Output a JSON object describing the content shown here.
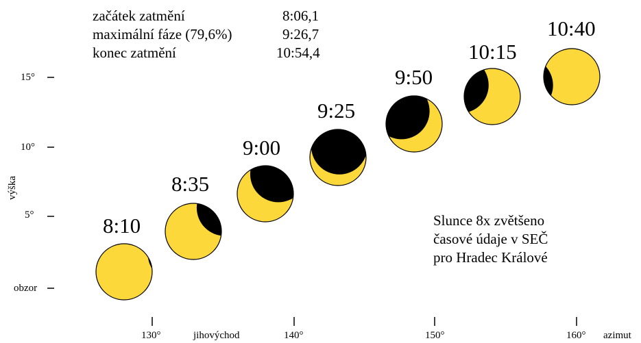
{
  "info_table": [
    {
      "label": "začátek zatmění",
      "value": "8:06,1"
    },
    {
      "label": "maximální fáze (79,6%)",
      "value": "9:26,7"
    },
    {
      "label": "konec zatmění",
      "value": "10:54,4"
    }
  ],
  "notes": [
    "Slunce 8x zvětšeno",
    "časové údaje v SEČ",
    "pro Hradec Králové"
  ],
  "axes": {
    "y_label": "výška",
    "y_ticks": [
      "obzor",
      "5°",
      "10°",
      "15°"
    ],
    "x_ticks": [
      "130°",
      "140°",
      "150°",
      "160°"
    ],
    "x_direction_label": "jihovýchod",
    "x_label": "azimut"
  },
  "frames": [
    {
      "time": "8:10",
      "eclipse": 0.03
    },
    {
      "time": "8:35",
      "eclipse": 0.3
    },
    {
      "time": "9:00",
      "eclipse": 0.58
    },
    {
      "time": "9:25",
      "eclipse": 0.8
    },
    {
      "time": "9:50",
      "eclipse": 0.68
    },
    {
      "time": "10:15",
      "eclipse": 0.4
    },
    {
      "time": "10:40",
      "eclipse": 0.15
    }
  ],
  "colors": {
    "sun": "#fcd83a",
    "moon": "#000000",
    "outline": "#000000"
  }
}
